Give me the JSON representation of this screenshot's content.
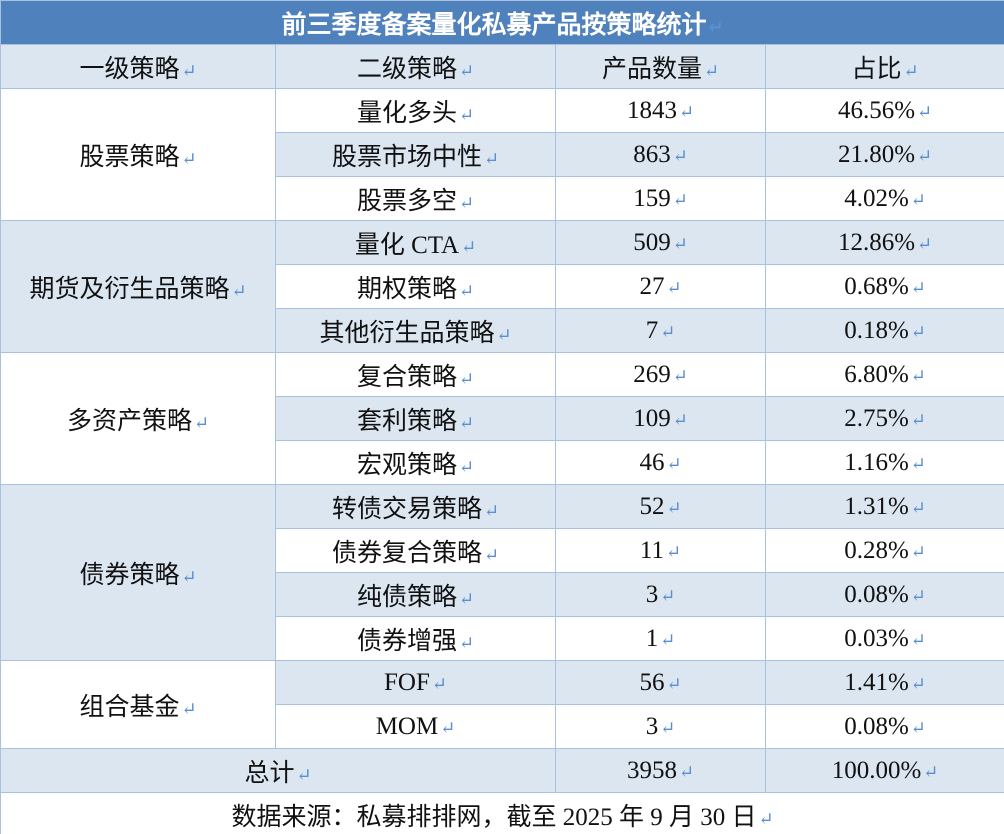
{
  "title": "前三季度备案量化私募产品按策略统计",
  "header": [
    "一级策略",
    "二级策略",
    "产品数量",
    "占比"
  ],
  "groups": [
    {
      "name": "股票策略",
      "rows": [
        [
          "量化多头",
          1843,
          "46.56%"
        ],
        [
          "股票市场中性",
          863,
          "21.80%"
        ],
        [
          "股票多空",
          159,
          "4.02%"
        ]
      ]
    },
    {
      "name": "期货及衍生品策略",
      "rows": [
        [
          "量化 CTA",
          509,
          "12.86%"
        ],
        [
          "期权策略",
          27,
          "0.68%"
        ],
        [
          "其他衍生品策略",
          7,
          "0.18%"
        ]
      ]
    },
    {
      "name": "多资产策略",
      "rows": [
        [
          "复合策略",
          269,
          "6.80%"
        ],
        [
          "套利策略",
          109,
          "2.75%"
        ],
        [
          "宏观策略",
          46,
          "1.16%"
        ]
      ]
    },
    {
      "name": "债券策略",
      "rows": [
        [
          "转债交易策略",
          52,
          "1.31%"
        ],
        [
          "债券复合策略",
          11,
          "0.28%"
        ],
        [
          "纯债策略",
          3,
          "0.08%"
        ],
        [
          "债券增强",
          1,
          "0.03%"
        ]
      ]
    },
    {
      "name": "组合基金",
      "rows": [
        [
          "FOF",
          56,
          "1.41%"
        ],
        [
          "MOM",
          3,
          "0.08%"
        ]
      ]
    }
  ],
  "total": {
    "label": "总计",
    "count": 3958,
    "share": "100.00%"
  },
  "source": "数据来源：私募排排网，截至 2025 年 9 月 30 日"
}
